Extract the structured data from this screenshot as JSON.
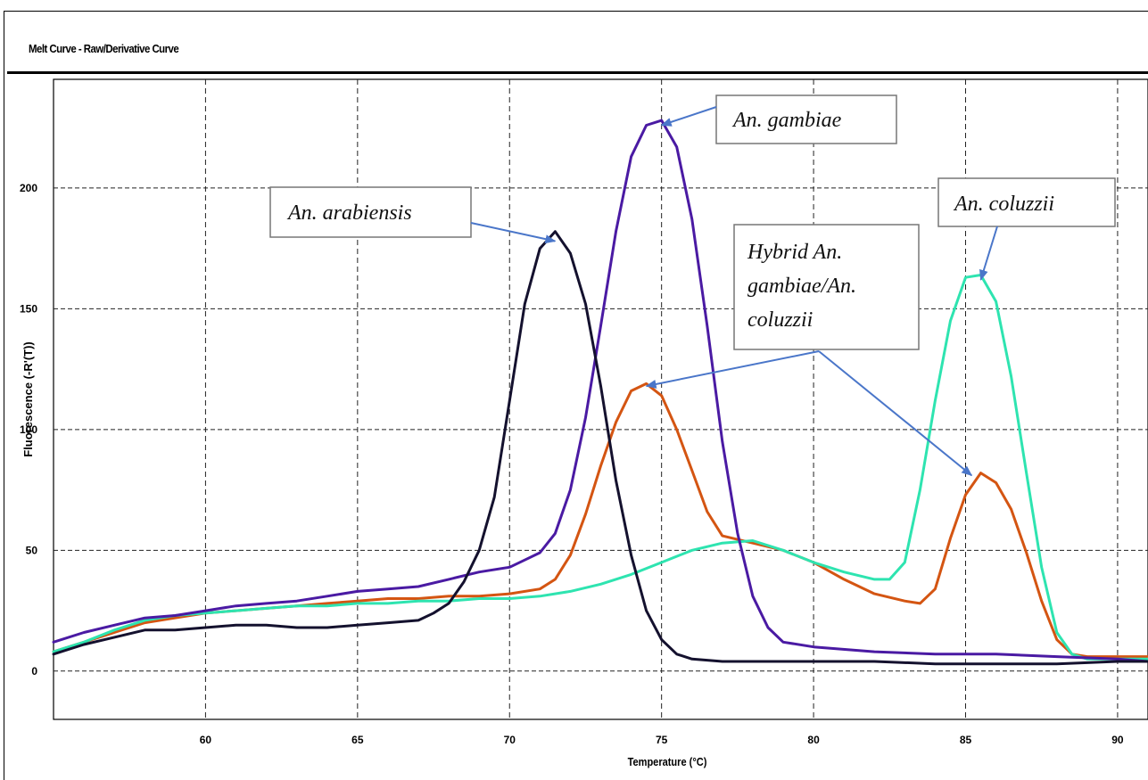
{
  "header": {
    "title": "Melt Curve - Raw/Derivative Curve"
  },
  "chart_data": {
    "type": "line",
    "title": "Melt Curve - Raw/Derivative Curve",
    "xlabel": "Temperature (°C)",
    "ylabel": "Fluorescence (-R'(T))",
    "xlim": [
      55,
      91
    ],
    "ylim": [
      -20,
      245
    ],
    "xticks": [
      60,
      65,
      70,
      75,
      80,
      85,
      90
    ],
    "yticks": [
      0,
      50,
      100,
      150,
      200
    ],
    "grid": true,
    "series": [
      {
        "name": "An. arabiensis",
        "color": "#14112e",
        "x": [
          55,
          56,
          57,
          58,
          59,
          60,
          61,
          62,
          63,
          64,
          65,
          66,
          67,
          67.5,
          68,
          68.5,
          69,
          69.5,
          70,
          70.5,
          71,
          71.5,
          72,
          72.5,
          73,
          73.5,
          74,
          74.5,
          75,
          75.5,
          76,
          77,
          78,
          80,
          82,
          84,
          86,
          88,
          90,
          91
        ],
        "y": [
          7,
          11,
          14,
          17,
          17,
          18,
          19,
          19,
          18,
          18,
          19,
          20,
          21,
          24,
          28,
          37,
          50,
          72,
          112,
          152,
          175,
          182,
          173,
          152,
          118,
          79,
          48,
          25,
          13,
          7,
          5,
          4,
          4,
          4,
          4,
          3,
          3,
          3,
          4,
          4
        ]
      },
      {
        "name": "An. gambiae",
        "color": "#4a1aa3",
        "x": [
          55,
          56,
          57,
          58,
          59,
          60,
          61,
          62,
          63,
          64,
          65,
          66,
          67,
          68,
          69,
          70,
          70.5,
          71,
          71.5,
          72,
          72.5,
          73,
          73.5,
          74,
          74.5,
          75,
          75.5,
          76,
          76.5,
          77,
          77.5,
          78,
          78.5,
          79,
          80,
          82,
          84,
          86,
          88,
          90,
          91
        ],
        "y": [
          12,
          16,
          19,
          22,
          23,
          25,
          27,
          28,
          29,
          31,
          33,
          34,
          35,
          38,
          41,
          43,
          46,
          49,
          57,
          75,
          105,
          143,
          182,
          213,
          226,
          228,
          217,
          187,
          143,
          95,
          57,
          31,
          18,
          12,
          10,
          8,
          7,
          7,
          6,
          5,
          4
        ]
      },
      {
        "name": "Hybrid An. gambiae/An. coluzzii",
        "color": "#d45512",
        "x": [
          55,
          56,
          57,
          58,
          59,
          60,
          61,
          62,
          63,
          64,
          65,
          66,
          67,
          68,
          69,
          70,
          71,
          71.5,
          72,
          72.5,
          73,
          73.5,
          74,
          74.5,
          75,
          75.5,
          76,
          76.5,
          77,
          78,
          79,
          80,
          81,
          82,
          83,
          83.5,
          84,
          84.5,
          85,
          85.5,
          86,
          86.5,
          87,
          87.5,
          88,
          88.5,
          89,
          90,
          91
        ],
        "y": [
          8,
          12,
          16,
          20,
          22,
          24,
          25,
          26,
          27,
          28,
          29,
          30,
          30,
          31,
          31,
          32,
          34,
          38,
          48,
          65,
          85,
          103,
          116,
          119,
          114,
          100,
          83,
          66,
          56,
          53,
          50,
          45,
          38,
          32,
          29,
          28,
          34,
          55,
          73,
          82,
          78,
          67,
          49,
          29,
          13,
          7,
          6,
          6,
          6
        ]
      },
      {
        "name": "An. coluzzii",
        "color": "#2ee4b0",
        "x": [
          55,
          56,
          57,
          58,
          59,
          60,
          61,
          62,
          63,
          64,
          65,
          66,
          67,
          68,
          69,
          70,
          71,
          72,
          73,
          74,
          75,
          76,
          77,
          78,
          79,
          80,
          81,
          82,
          82.5,
          83,
          83.5,
          84,
          84.5,
          85,
          85.5,
          86,
          86.5,
          87,
          87.5,
          88,
          88.5,
          89,
          90,
          91
        ],
        "y": [
          8,
          12,
          17,
          21,
          23,
          24,
          25,
          26,
          27,
          27,
          28,
          28,
          29,
          29,
          30,
          30,
          31,
          33,
          36,
          40,
          45,
          50,
          53,
          54,
          50,
          45,
          41,
          38,
          38,
          45,
          75,
          112,
          145,
          163,
          164,
          153,
          122,
          82,
          43,
          16,
          7,
          5,
          5,
          5
        ]
      }
    ],
    "annotations": [
      {
        "text": "An. arabiensis",
        "target_series": "An. arabiensis",
        "point": [
          71.5,
          182
        ]
      },
      {
        "text": "An. gambiae",
        "target_series": "An. gambiae",
        "point": [
          75,
          228
        ]
      },
      {
        "text": "An. coluzzii",
        "target_series": "An. coluzzii",
        "point": [
          85.5,
          164
        ]
      },
      {
        "text_lines": [
          "Hybrid An.",
          "gambiae/An.",
          "coluzzii"
        ],
        "target_series": "Hybrid An. gambiae/An. coluzzii",
        "points": [
          [
            74.5,
            119
          ],
          [
            85.5,
            82
          ]
        ]
      }
    ]
  }
}
